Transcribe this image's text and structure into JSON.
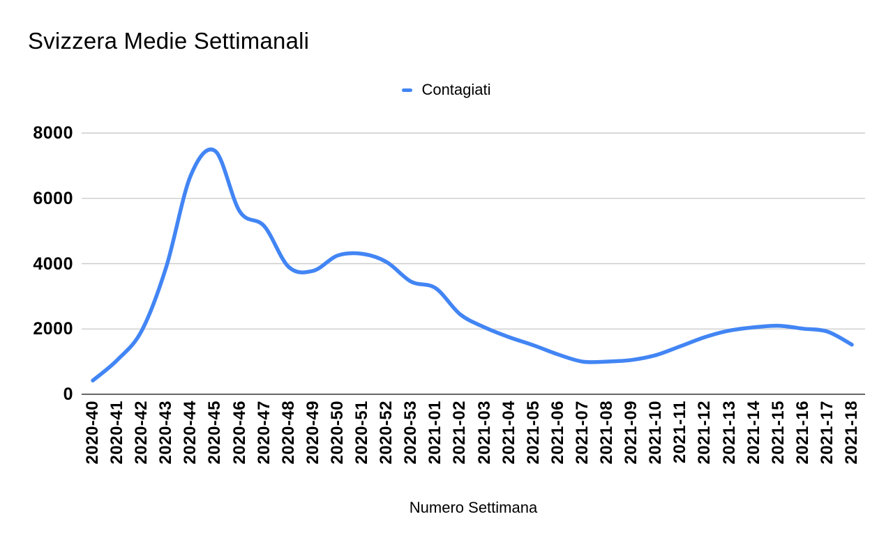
{
  "chart_data": {
    "type": "line",
    "title": "Svizzera Medie Settimanali",
    "xlabel": "Numero Settimana",
    "ylabel": "",
    "ylim": [
      0,
      8000
    ],
    "yticks": [
      0,
      2000,
      4000,
      6000,
      8000
    ],
    "grid": true,
    "legend_position": "top-center",
    "line_style": "smooth",
    "categories": [
      "2020-40",
      "2020-41",
      "2020-42",
      "2020-43",
      "2020-44",
      "2020-45",
      "2020-46",
      "2020-47",
      "2020-48",
      "2020-49",
      "2020-50",
      "2020-51",
      "2020-52",
      "2020-53",
      "2021-01",
      "2021-02",
      "2021-03",
      "2021-04",
      "2021-05",
      "2021-06",
      "2021-07",
      "2021-08",
      "2021-09",
      "2021-10",
      "2021-11",
      "2021-12",
      "2021-13",
      "2021-14",
      "2021-15",
      "2021-16",
      "2021-17",
      "2021-18"
    ],
    "series": [
      {
        "name": "Contagiati",
        "color": "#4285f4",
        "values": [
          420,
          1050,
          1950,
          3900,
          6700,
          7450,
          5600,
          5150,
          3900,
          3780,
          4250,
          4300,
          4050,
          3450,
          3250,
          2450,
          2050,
          1750,
          1500,
          1220,
          1000,
          1000,
          1050,
          1200,
          1470,
          1750,
          1950,
          2050,
          2100,
          2010,
          1920,
          1520
        ]
      }
    ]
  },
  "colors": {
    "accent": "#4285f4",
    "grid": "#cccccc",
    "axis": "#333333",
    "text": "#000000",
    "background": "#ffffff"
  }
}
